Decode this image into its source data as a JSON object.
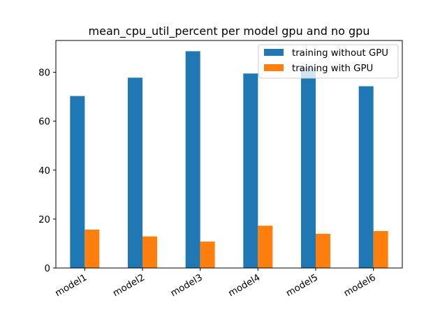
{
  "chart_data": {
    "type": "bar",
    "title": "mean_cpu_util_percent per model gpu and no gpu",
    "xlabel": "",
    "ylabel": "",
    "categories": [
      "model1",
      "model2",
      "model3",
      "model4",
      "model5",
      "model6"
    ],
    "series": [
      {
        "name": "training without GPU",
        "color": "#1f77b4",
        "values": [
          70.3,
          77.8,
          88.6,
          79.5,
          81.8,
          74.3
        ]
      },
      {
        "name": "training with GPU",
        "color": "#ff7f0e",
        "values": [
          15.7,
          12.9,
          10.8,
          17.3,
          14.0,
          15.1
        ]
      }
    ],
    "ylim": [
      0,
      93
    ],
    "yticks": [
      0,
      20,
      40,
      60,
      80
    ],
    "grid": false,
    "legend_position": "top-right"
  }
}
